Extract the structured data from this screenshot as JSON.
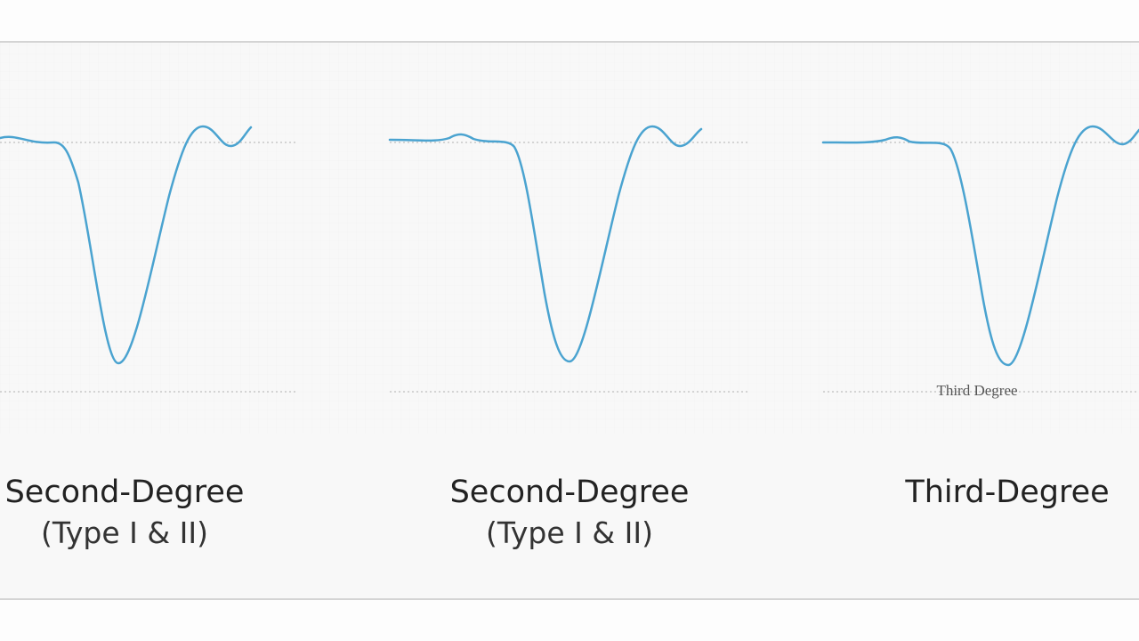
{
  "panels": [
    {
      "title": "Second-Degree",
      "subtitle": "(Type I & II)"
    },
    {
      "title": "Second-Degree",
      "subtitle": "(Type I & II)"
    },
    {
      "title": "Third-Degree",
      "label": "Third Degree"
    }
  ]
}
